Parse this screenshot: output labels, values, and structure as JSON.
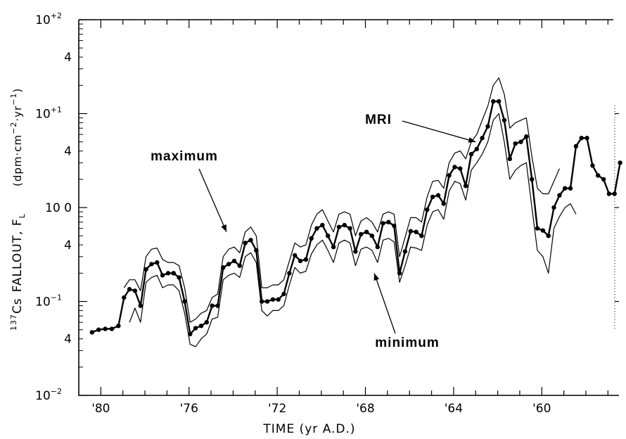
{
  "chart_data": {
    "type": "line",
    "title": "",
    "xlabel": "TIME  (yr A.D.)",
    "ylabel_main": "FALLOUT, F",
    "ylabel_sub": "L",
    "ylabel_prefix_sup": "137",
    "ylabel_prefix": "Cs",
    "yunit_text": "(dpm·cm",
    "yunit_exp1": "−2",
    "yunit_mid": "·yr",
    "yunit_exp2": "−1",
    "yunit_close": ")",
    "x_reversed": true,
    "xlim": [
      1981,
      1956.5
    ],
    "yscale": "log",
    "ylim": [
      0.01,
      100
    ],
    "grid": false,
    "x_ticks": [
      {
        "value": 1980,
        "label": "'80"
      },
      {
        "value": 1976,
        "label": "'76"
      },
      {
        "value": 1972,
        "label": "'72"
      },
      {
        "value": 1968,
        "label": "'68"
      },
      {
        "value": 1964,
        "label": "'64"
      },
      {
        "value": 1960,
        "label": "'60"
      }
    ],
    "y_tick_labels": [
      {
        "value": 100,
        "base": "10",
        "exp": "+2"
      },
      {
        "value": 40,
        "base": "4",
        "exp": ""
      },
      {
        "value": 10,
        "base": "10",
        "exp": "+1"
      },
      {
        "value": 4,
        "base": "4",
        "exp": ""
      },
      {
        "value": 1,
        "base": "10 0",
        "exp": ""
      },
      {
        "value": 0.4,
        "base": "4",
        "exp": ""
      },
      {
        "value": 0.1,
        "base": "10",
        "exp": "−1"
      },
      {
        "value": 0.04,
        "base": "4",
        "exp": ""
      },
      {
        "value": 0.01,
        "base": "10",
        "exp": "−2"
      }
    ],
    "annotations": [
      {
        "text": "MRI",
        "target": [
          1963.0,
          5.0
        ]
      },
      {
        "text": "maximum",
        "target": [
          1974.3,
          0.55
        ]
      },
      {
        "text": "minimum",
        "target": [
          1967.6,
          0.2
        ]
      }
    ],
    "series": [
      {
        "name": "",
        "role": "measured",
        "markers": true,
        "points": [
          [
            1980.4,
            0.047
          ],
          [
            1980.1,
            0.05
          ],
          [
            1979.8,
            0.051
          ],
          [
            1979.5,
            0.051
          ],
          [
            1979.2,
            0.055
          ],
          [
            1978.95,
            0.11
          ],
          [
            1978.7,
            0.135
          ],
          [
            1978.45,
            0.13
          ],
          [
            1978.2,
            0.09
          ],
          [
            1977.95,
            0.22
          ],
          [
            1977.7,
            0.25
          ],
          [
            1977.45,
            0.26
          ],
          [
            1977.2,
            0.19
          ],
          [
            1976.95,
            0.2
          ],
          [
            1976.7,
            0.2
          ],
          [
            1976.45,
            0.18
          ],
          [
            1976.2,
            0.1
          ],
          [
            1975.95,
            0.045
          ],
          [
            1975.7,
            0.052
          ],
          [
            1975.45,
            0.055
          ],
          [
            1975.2,
            0.06
          ],
          [
            1974.95,
            0.09
          ],
          [
            1974.7,
            0.09
          ],
          [
            1974.45,
            0.23
          ],
          [
            1974.2,
            0.25
          ],
          [
            1973.95,
            0.27
          ],
          [
            1973.7,
            0.24
          ],
          [
            1973.45,
            0.42
          ],
          [
            1973.2,
            0.45
          ],
          [
            1972.95,
            0.35
          ],
          [
            1972.7,
            0.1
          ],
          [
            1972.45,
            0.1
          ],
          [
            1972.2,
            0.105
          ],
          [
            1971.95,
            0.105
          ],
          [
            1971.7,
            0.12
          ],
          [
            1971.45,
            0.2
          ],
          [
            1971.2,
            0.31
          ],
          [
            1970.95,
            0.27
          ],
          [
            1970.7,
            0.28
          ],
          [
            1970.45,
            0.47
          ],
          [
            1970.2,
            0.6
          ],
          [
            1969.95,
            0.65
          ],
          [
            1969.7,
            0.5
          ],
          [
            1969.45,
            0.38
          ],
          [
            1969.2,
            0.62
          ],
          [
            1968.95,
            0.65
          ],
          [
            1968.7,
            0.6
          ],
          [
            1968.45,
            0.34
          ],
          [
            1968.2,
            0.52
          ],
          [
            1967.95,
            0.55
          ],
          [
            1967.7,
            0.5
          ],
          [
            1967.45,
            0.38
          ],
          [
            1967.2,
            0.68
          ],
          [
            1966.95,
            0.7
          ],
          [
            1966.7,
            0.64
          ],
          [
            1966.45,
            0.2
          ],
          [
            1966.2,
            0.34
          ],
          [
            1965.95,
            0.56
          ],
          [
            1965.7,
            0.55
          ],
          [
            1965.45,
            0.5
          ],
          [
            1965.2,
            0.95
          ],
          [
            1964.95,
            1.3
          ],
          [
            1964.7,
            1.35
          ],
          [
            1964.45,
            1.1
          ],
          [
            1964.2,
            2.2
          ],
          [
            1963.95,
            2.7
          ],
          [
            1963.7,
            2.6
          ],
          [
            1963.45,
            1.7
          ],
          [
            1963.2,
            3.7
          ],
          [
            1962.95,
            4.2
          ],
          [
            1962.7,
            5.5
          ],
          [
            1962.45,
            7.3
          ],
          [
            1962.2,
            13.5
          ],
          [
            1961.95,
            13.5
          ],
          [
            1961.7,
            8.5
          ],
          [
            1961.45,
            3.3
          ],
          [
            1961.2,
            4.8
          ],
          [
            1960.95,
            5.0
          ],
          [
            1960.7,
            5.7
          ],
          [
            1960.45,
            2.0
          ],
          [
            1960.2,
            0.6
          ],
          [
            1959.95,
            0.57
          ],
          [
            1959.7,
            0.5
          ],
          [
            1959.45,
            1.0
          ],
          [
            1959.2,
            1.35
          ],
          [
            1958.95,
            1.6
          ],
          [
            1958.7,
            1.6
          ],
          [
            1958.45,
            4.5
          ],
          [
            1958.2,
            5.5
          ],
          [
            1957.95,
            5.5
          ],
          [
            1957.7,
            2.8
          ],
          [
            1957.45,
            2.2
          ],
          [
            1957.2,
            2.0
          ],
          [
            1956.95,
            1.4
          ],
          [
            1956.7,
            1.4
          ],
          [
            1956.45,
            3.0
          ]
        ]
      },
      {
        "name": "maximum",
        "role": "envelope",
        "markers": false,
        "points": [
          [
            1978.95,
            0.14
          ],
          [
            1978.7,
            0.17
          ],
          [
            1978.45,
            0.17
          ],
          [
            1978.2,
            0.13
          ],
          [
            1977.95,
            0.3
          ],
          [
            1977.7,
            0.36
          ],
          [
            1977.45,
            0.37
          ],
          [
            1977.2,
            0.28
          ],
          [
            1976.95,
            0.26
          ],
          [
            1976.7,
            0.26
          ],
          [
            1976.45,
            0.24
          ],
          [
            1976.2,
            0.14
          ],
          [
            1975.95,
            0.06
          ],
          [
            1975.7,
            0.065
          ],
          [
            1975.45,
            0.075
          ],
          [
            1975.2,
            0.08
          ],
          [
            1974.95,
            0.11
          ],
          [
            1974.7,
            0.12
          ],
          [
            1974.45,
            0.3
          ],
          [
            1974.2,
            0.36
          ],
          [
            1973.95,
            0.38
          ],
          [
            1973.7,
            0.33
          ],
          [
            1973.45,
            0.55
          ],
          [
            1973.2,
            0.62
          ],
          [
            1972.95,
            0.5
          ],
          [
            1972.7,
            0.14
          ],
          [
            1972.45,
            0.14
          ],
          [
            1972.2,
            0.15
          ],
          [
            1971.95,
            0.15
          ],
          [
            1971.7,
            0.17
          ],
          [
            1971.45,
            0.27
          ],
          [
            1971.2,
            0.42
          ],
          [
            1970.95,
            0.38
          ],
          [
            1970.7,
            0.4
          ],
          [
            1970.45,
            0.65
          ],
          [
            1970.2,
            0.85
          ],
          [
            1969.95,
            0.95
          ],
          [
            1969.7,
            0.72
          ],
          [
            1969.45,
            0.55
          ],
          [
            1969.2,
            0.85
          ],
          [
            1968.95,
            0.9
          ],
          [
            1968.7,
            0.85
          ],
          [
            1968.45,
            0.5
          ],
          [
            1968.2,
            0.72
          ],
          [
            1967.95,
            0.78
          ],
          [
            1967.7,
            0.7
          ],
          [
            1967.45,
            0.55
          ],
          [
            1967.2,
            0.85
          ],
          [
            1966.95,
            0.9
          ],
          [
            1966.7,
            0.85
          ],
          [
            1966.45,
            0.3
          ],
          [
            1966.2,
            0.48
          ],
          [
            1965.95,
            0.78
          ],
          [
            1965.7,
            0.78
          ],
          [
            1965.45,
            0.7
          ],
          [
            1965.2,
            1.3
          ],
          [
            1964.95,
            1.9
          ],
          [
            1964.7,
            1.95
          ],
          [
            1964.45,
            1.6
          ],
          [
            1964.2,
            3.0
          ],
          [
            1963.95,
            3.8
          ],
          [
            1963.7,
            4.0
          ],
          [
            1963.45,
            3.3
          ],
          [
            1963.2,
            5.0
          ],
          [
            1962.95,
            6.0
          ],
          [
            1962.7,
            8.5
          ],
          [
            1962.45,
            12.0
          ],
          [
            1962.2,
            20.0
          ],
          [
            1961.95,
            24.0
          ],
          [
            1961.7,
            16.0
          ],
          [
            1961.45,
            7.0
          ],
          [
            1961.2,
            8.0
          ],
          [
            1960.95,
            8.5
          ],
          [
            1960.7,
            9.0
          ],
          [
            1960.45,
            3.5
          ],
          [
            1960.2,
            1.6
          ],
          [
            1959.95,
            1.4
          ],
          [
            1959.7,
            1.4
          ],
          [
            1959.45,
            1.9
          ],
          [
            1959.2,
            2.6
          ]
        ]
      },
      {
        "name": "minimum",
        "role": "envelope",
        "markers": false,
        "points": [
          [
            1978.7,
            0.06
          ],
          [
            1978.45,
            0.085
          ],
          [
            1978.2,
            0.06
          ],
          [
            1977.95,
            0.16
          ],
          [
            1977.7,
            0.18
          ],
          [
            1977.45,
            0.19
          ],
          [
            1977.2,
            0.14
          ],
          [
            1976.95,
            0.15
          ],
          [
            1976.7,
            0.15
          ],
          [
            1976.45,
            0.13
          ],
          [
            1976.2,
            0.075
          ],
          [
            1975.95,
            0.035
          ],
          [
            1975.7,
            0.033
          ],
          [
            1975.45,
            0.04
          ],
          [
            1975.2,
            0.045
          ],
          [
            1974.95,
            0.065
          ],
          [
            1974.7,
            0.068
          ],
          [
            1974.45,
            0.17
          ],
          [
            1974.2,
            0.19
          ],
          [
            1973.95,
            0.2
          ],
          [
            1973.7,
            0.18
          ],
          [
            1973.45,
            0.3
          ],
          [
            1973.2,
            0.33
          ],
          [
            1972.95,
            0.26
          ],
          [
            1972.7,
            0.08
          ],
          [
            1972.45,
            0.07
          ],
          [
            1972.2,
            0.08
          ],
          [
            1971.95,
            0.08
          ],
          [
            1971.7,
            0.09
          ],
          [
            1971.45,
            0.15
          ],
          [
            1971.2,
            0.23
          ],
          [
            1970.95,
            0.2
          ],
          [
            1970.7,
            0.21
          ],
          [
            1970.45,
            0.32
          ],
          [
            1970.2,
            0.4
          ],
          [
            1969.95,
            0.45
          ],
          [
            1969.7,
            0.35
          ],
          [
            1969.45,
            0.26
          ],
          [
            1969.2,
            0.42
          ],
          [
            1968.95,
            0.45
          ],
          [
            1968.7,
            0.42
          ],
          [
            1968.45,
            0.24
          ],
          [
            1968.2,
            0.36
          ],
          [
            1967.95,
            0.38
          ],
          [
            1967.7,
            0.35
          ],
          [
            1967.45,
            0.26
          ],
          [
            1967.2,
            0.45
          ],
          [
            1966.95,
            0.47
          ],
          [
            1966.7,
            0.43
          ],
          [
            1966.45,
            0.16
          ],
          [
            1966.2,
            0.24
          ],
          [
            1965.95,
            0.38
          ],
          [
            1965.7,
            0.37
          ],
          [
            1965.45,
            0.35
          ],
          [
            1965.2,
            0.65
          ],
          [
            1964.95,
            0.9
          ],
          [
            1964.7,
            0.95
          ],
          [
            1964.45,
            0.75
          ],
          [
            1964.2,
            1.5
          ],
          [
            1963.95,
            1.9
          ],
          [
            1963.7,
            1.8
          ],
          [
            1963.45,
            1.2
          ],
          [
            1963.2,
            2.5
          ],
          [
            1962.95,
            3.0
          ],
          [
            1962.7,
            3.7
          ],
          [
            1962.45,
            5.0
          ],
          [
            1962.2,
            8.5
          ],
          [
            1961.95,
            10.0
          ],
          [
            1961.7,
            5.0
          ],
          [
            1961.45,
            2.0
          ],
          [
            1961.2,
            2.5
          ],
          [
            1960.95,
            2.8
          ],
          [
            1960.7,
            3.0
          ],
          [
            1960.45,
            1.0
          ],
          [
            1960.2,
            0.35
          ],
          [
            1959.95,
            0.3
          ],
          [
            1959.7,
            0.2
          ],
          [
            1959.45,
            0.6
          ],
          [
            1959.2,
            0.8
          ],
          [
            1958.95,
            1.0
          ],
          [
            1958.7,
            1.1
          ],
          [
            1958.45,
            0.85
          ]
        ]
      }
    ]
  }
}
